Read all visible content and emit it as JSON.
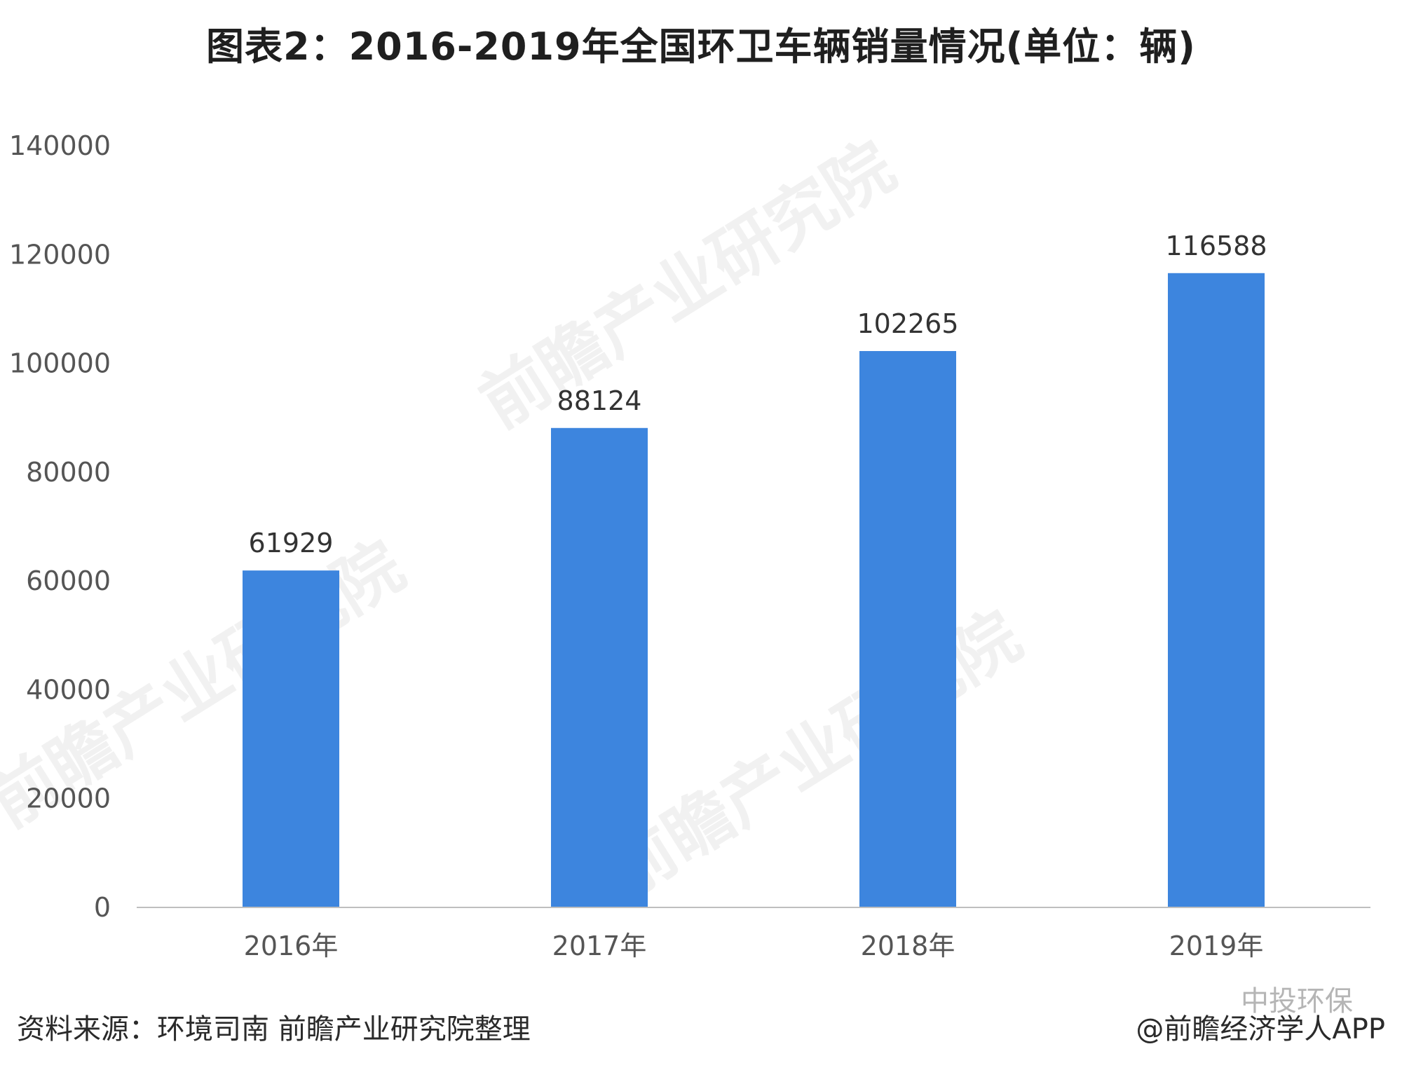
{
  "title": "图表2：2016-2019年全国环卫车辆销量情况(单位：辆)",
  "footer": {
    "source": "资料来源：环境司南 前瞻产业研究院整理",
    "credit": "@前瞻经济学人APP",
    "account_watermark": "中投环保"
  },
  "watermark_text": "前瞻产业研究院",
  "colors": {
    "bar": "#3d85de",
    "axis": "#bfbfbf",
    "text": "#555555"
  },
  "chart_data": {
    "type": "bar",
    "title": "图表2：2016-2019年全国环卫车辆销量情况(单位：辆)",
    "categories": [
      "2016年",
      "2017年",
      "2018年",
      "2019年"
    ],
    "values": [
      61929,
      88124,
      102265,
      116588
    ],
    "xlabel": "",
    "ylabel": "",
    "ylim": [
      0,
      140000
    ],
    "yticks": [
      0,
      20000,
      40000,
      60000,
      80000,
      100000,
      120000,
      140000
    ],
    "grid": false,
    "data_labels": true
  }
}
